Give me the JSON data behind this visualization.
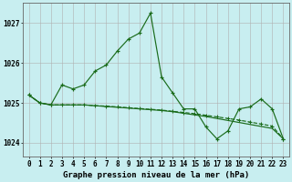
{
  "title": "Graphe pression niveau de la mer (hPa)",
  "background_color": "#c8eef0",
  "grid_color": "#b0b0b0",
  "line_color": "#1a6b1a",
  "title_fontsize": 6.5,
  "tick_fontsize": 5.5,
  "x_ticks": [
    0,
    1,
    2,
    3,
    4,
    5,
    6,
    7,
    8,
    9,
    10,
    11,
    12,
    13,
    14,
    15,
    16,
    17,
    18,
    19,
    20,
    21,
    22,
    23
  ],
  "y_ticks": [
    1024,
    1025,
    1026,
    1027
  ],
  "ylim": [
    1023.65,
    1027.5
  ],
  "xlim": [
    -0.5,
    23.5
  ],
  "line1_x": [
    0,
    1,
    2,
    3,
    4,
    5,
    6,
    7,
    8,
    9,
    10,
    11,
    12,
    13,
    14,
    15,
    16,
    17,
    18,
    19,
    20,
    21,
    22,
    23
  ],
  "line1_y": [
    1025.2,
    1025.0,
    1024.95,
    1025.45,
    1025.35,
    1025.45,
    1025.8,
    1025.95,
    1026.3,
    1026.6,
    1026.75,
    1027.25,
    1025.65,
    1025.25,
    1024.85,
    1024.85,
    1024.4,
    1024.1,
    1024.3,
    1024.85,
    1024.9,
    1025.1,
    1024.85,
    1024.1
  ],
  "line2_x": [
    0,
    1,
    2,
    3,
    4,
    5,
    6,
    7,
    8,
    9,
    10,
    11,
    12,
    13,
    14,
    15,
    16,
    17,
    18,
    19,
    20,
    21,
    22,
    23
  ],
  "line2_y": [
    1025.2,
    1025.0,
    1024.95,
    1024.95,
    1024.95,
    1024.95,
    1024.93,
    1024.92,
    1024.9,
    1024.88,
    1024.86,
    1024.84,
    1024.82,
    1024.79,
    1024.76,
    1024.73,
    1024.69,
    1024.65,
    1024.61,
    1024.57,
    1024.52,
    1024.47,
    1024.42,
    1024.1
  ],
  "line3_x": [
    0,
    1,
    2,
    3,
    4,
    5,
    6,
    7,
    8,
    9,
    10,
    11,
    12,
    13,
    14,
    15,
    16,
    17,
    18,
    19,
    20,
    21,
    22,
    23
  ],
  "line3_y": [
    1025.2,
    1025.0,
    1024.95,
    1024.95,
    1024.95,
    1024.95,
    1024.93,
    1024.91,
    1024.89,
    1024.87,
    1024.85,
    1024.83,
    1024.81,
    1024.78,
    1024.74,
    1024.7,
    1024.66,
    1024.61,
    1024.56,
    1024.51,
    1024.46,
    1024.41,
    1024.36,
    1024.1
  ]
}
